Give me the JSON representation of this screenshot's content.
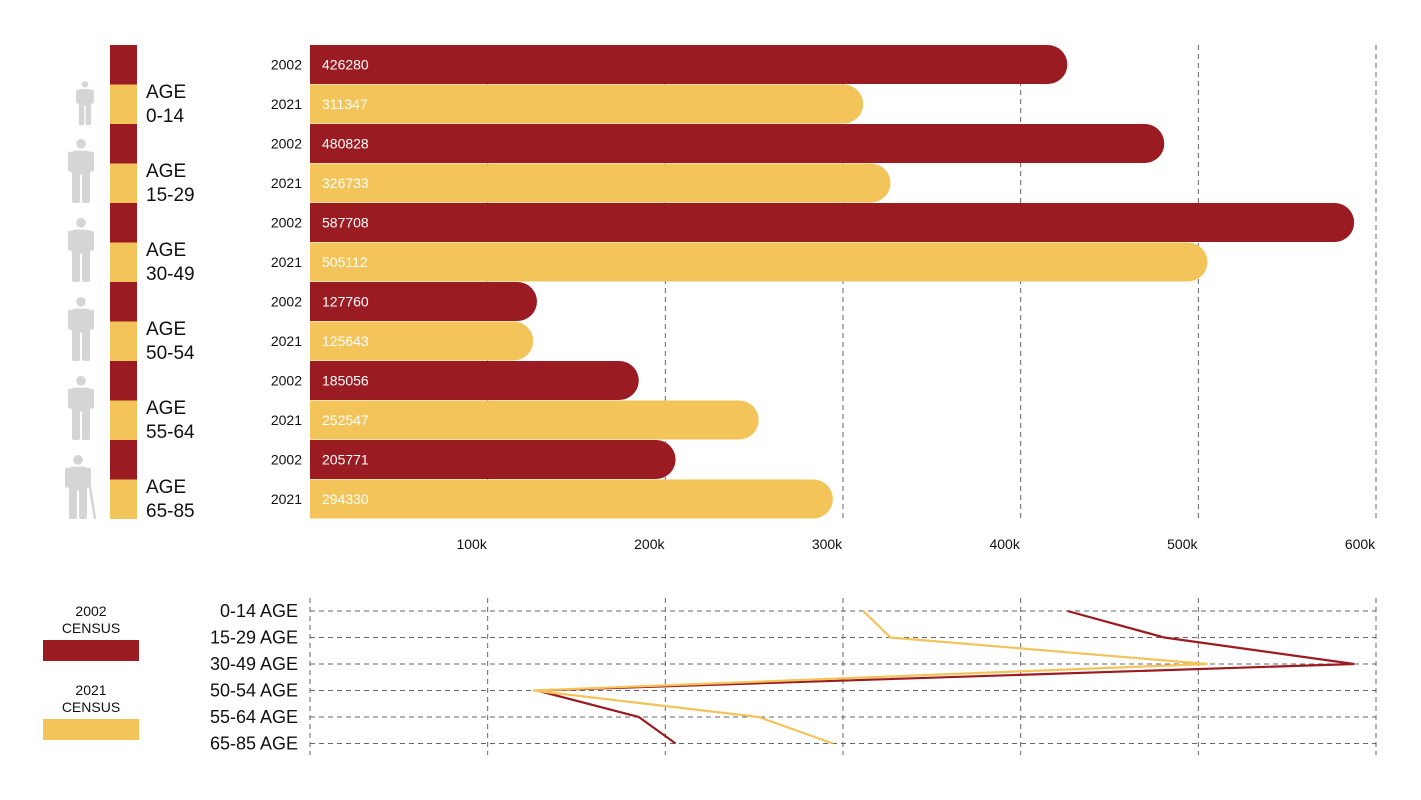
{
  "colors": {
    "series_2002": "#9b1b22",
    "series_2021": "#f2c45a",
    "grid": "#666666",
    "person_icon": "#d5d5d5"
  },
  "age_groups": [
    {
      "word": "AGE",
      "range": "0-14",
      "icon": "child-icon"
    },
    {
      "word": "AGE",
      "range": "15-29",
      "icon": "person-icon"
    },
    {
      "word": "AGE",
      "range": "30-49",
      "icon": "person-icon"
    },
    {
      "word": "AGE",
      "range": "50-54",
      "icon": "person-icon"
    },
    {
      "word": "AGE",
      "range": "55-64",
      "icon": "person-icon"
    },
    {
      "word": "AGE",
      "range": "65-85",
      "icon": "elderly-person-cane-icon"
    }
  ],
  "legend": {
    "series_2002": {
      "year": "2002",
      "label": "CENSUS"
    },
    "series_2021": {
      "year": "2021",
      "label": "CENSUS"
    }
  },
  "chart_data": [
    {
      "type": "bar",
      "orientation": "horizontal",
      "title": "",
      "xlabel": "",
      "ylabel": "",
      "categories": [
        "AGE 0-14",
        "AGE 15-29",
        "AGE 30-49",
        "AGE 50-54",
        "AGE 55-64",
        "AGE 65-85"
      ],
      "series": [
        {
          "name": "2002",
          "values": [
            426280,
            480828,
            587708,
            127760,
            185056,
            205771
          ]
        },
        {
          "name": "2021",
          "values": [
            311347,
            326733,
            505112,
            125643,
            252547,
            294330
          ]
        }
      ],
      "xlim": [
        0,
        600000
      ],
      "x_ticks": [
        100000,
        200000,
        300000,
        400000,
        500000,
        600000
      ],
      "x_tick_labels": [
        "100k",
        "200k",
        "300k",
        "400k",
        "500k",
        "600k"
      ],
      "grid": "vertical dashed"
    },
    {
      "type": "line",
      "title": "",
      "categories": [
        "0-14 AGE",
        "15-29 AGE",
        "30-49 AGE",
        "50-54 AGE",
        "55-64 AGE",
        "65-85 AGE"
      ],
      "series": [
        {
          "name": "2002 CENSUS",
          "values": [
            426280,
            480828,
            587708,
            127760,
            185056,
            205771
          ]
        },
        {
          "name": "2021 CENSUS",
          "values": [
            311347,
            326733,
            505112,
            125643,
            252547,
            294330
          ]
        }
      ],
      "xlim": [
        0,
        600000
      ],
      "grid": "dashed horizontal and vertical"
    }
  ]
}
